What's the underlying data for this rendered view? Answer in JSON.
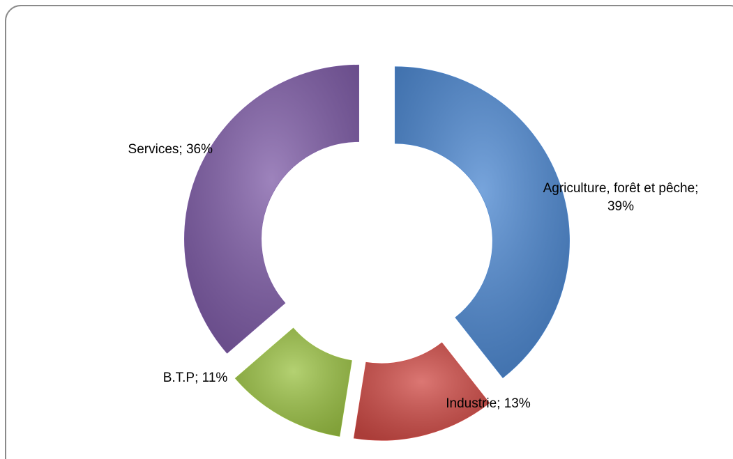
{
  "chart_data": {
    "type": "doughnut",
    "values": [
      39,
      13,
      11,
      36
    ],
    "value_labels": [
      "Agriculture, forêt et pêche; 39%",
      "Industrie; 13%",
      "B.T.P; 11%",
      "Services; 36%"
    ],
    "colors": [
      "#4a86d0",
      "#d04a45",
      "#9bc243",
      "#7d5aa6"
    ]
  }
}
